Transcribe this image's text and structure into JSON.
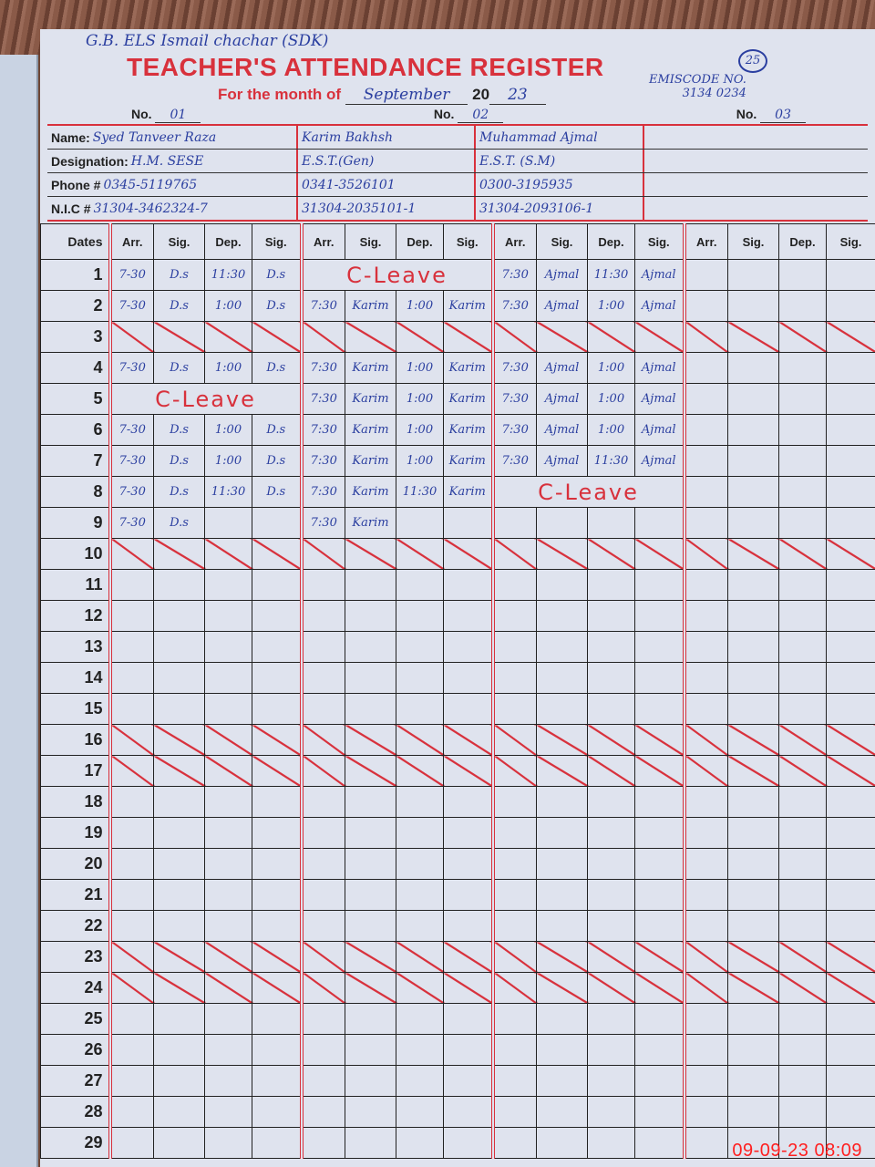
{
  "header": {
    "school": "G.B. ELS Ismail chachar (SDK)",
    "title": "TEACHER'S ATTENDANCE REGISTER",
    "page_number": "25",
    "emis_label": "EMISCODE NO.",
    "emis_code": "3134 0234",
    "month_label": "For the month of",
    "month": "September",
    "year_prefix": "20",
    "year_suffix": "23",
    "no_label": "No.",
    "numbers": [
      "01",
      "02",
      "03"
    ]
  },
  "info": {
    "labels": {
      "name": "Name:",
      "designation": "Designation:",
      "phone": "Phone #",
      "nic": "N.I.C #"
    },
    "teachers": [
      {
        "name": "Syed Tanveer Raza",
        "designation": "H.M. SESE",
        "phone": "0345-5119765",
        "nic": "31304-3462324-7"
      },
      {
        "name": "Karim Bakhsh",
        "designation": "E.S.T.(Gen)",
        "phone": "0341-3526101",
        "nic": "31304-2035101-1"
      },
      {
        "name": "Muhammad Ajmal",
        "designation": "E.S.T. (S.M)",
        "phone": "0300-3195935",
        "nic": "31304-2093106-1"
      },
      {
        "name": "",
        "designation": "",
        "phone": "",
        "nic": ""
      }
    ]
  },
  "grid": {
    "dates_header": "Dates",
    "col_headers": [
      "Arr.",
      "Sig.",
      "Dep.",
      "Sig."
    ],
    "crossed_out_dates": [
      3,
      10,
      16,
      17,
      23,
      24
    ],
    "rows": [
      {
        "date": "1",
        "t": [
          [
            "7-30",
            "D.s",
            "11:30",
            "D.s"
          ],
          {
            "leave": "C-Leave"
          },
          [
            "7:30",
            "Ajmal",
            "11:30",
            "Ajmal"
          ],
          [
            "",
            "",
            "",
            ""
          ]
        ]
      },
      {
        "date": "2",
        "t": [
          [
            "7-30",
            "D.s",
            "1:00",
            "D.s"
          ],
          [
            "7:30",
            "Karim",
            "1:00",
            "Karim"
          ],
          [
            "7:30",
            "Ajmal",
            "1:00",
            "Ajmal"
          ],
          [
            "",
            "",
            "",
            ""
          ]
        ]
      },
      {
        "date": "3",
        "t": [
          [
            "",
            "",
            "",
            ""
          ],
          [
            "",
            "",
            "",
            ""
          ],
          [
            "",
            "",
            "",
            ""
          ],
          [
            "",
            "",
            "",
            ""
          ]
        ]
      },
      {
        "date": "4",
        "t": [
          [
            "7-30",
            "D.s",
            "1:00",
            "D.s"
          ],
          [
            "7:30",
            "Karim",
            "1:00",
            "Karim"
          ],
          [
            "7:30",
            "Ajmal",
            "1:00",
            "Ajmal"
          ],
          [
            "",
            "",
            "",
            ""
          ]
        ]
      },
      {
        "date": "5",
        "t": [
          {
            "leave": "C-Leave"
          },
          [
            "7:30",
            "Karim",
            "1:00",
            "Karim"
          ],
          [
            "7:30",
            "Ajmal",
            "1:00",
            "Ajmal"
          ],
          [
            "",
            "",
            "",
            ""
          ]
        ]
      },
      {
        "date": "6",
        "t": [
          [
            "7-30",
            "D.s",
            "1:00",
            "D.s"
          ],
          [
            "7:30",
            "Karim",
            "1:00",
            "Karim"
          ],
          [
            "7:30",
            "Ajmal",
            "1:00",
            "Ajmal"
          ],
          [
            "",
            "",
            "",
            ""
          ]
        ]
      },
      {
        "date": "7",
        "t": [
          [
            "7-30",
            "D.s",
            "1:00",
            "D.s"
          ],
          [
            "7:30",
            "Karim",
            "1:00",
            "Karim"
          ],
          [
            "7:30",
            "Ajmal",
            "11:30",
            "Ajmal"
          ],
          [
            "",
            "",
            "",
            ""
          ]
        ]
      },
      {
        "date": "8",
        "t": [
          [
            "7-30",
            "D.s",
            "11:30",
            "D.s"
          ],
          [
            "7:30",
            "Karim",
            "11:30",
            "Karim"
          ],
          {
            "leave": "C-Leave"
          },
          [
            "",
            "",
            "",
            ""
          ]
        ]
      },
      {
        "date": "9",
        "t": [
          [
            "7-30",
            "D.s",
            "",
            ""
          ],
          [
            "7:30",
            "Karim",
            "",
            ""
          ],
          [
            "",
            "",
            "",
            ""
          ],
          [
            "",
            "",
            "",
            ""
          ]
        ]
      },
      {
        "date": "10"
      },
      {
        "date": "11"
      },
      {
        "date": "12"
      },
      {
        "date": "13"
      },
      {
        "date": "14"
      },
      {
        "date": "15"
      },
      {
        "date": "16"
      },
      {
        "date": "17"
      },
      {
        "date": "18"
      },
      {
        "date": "19"
      },
      {
        "date": "20"
      },
      {
        "date": "21"
      },
      {
        "date": "22"
      },
      {
        "date": "23"
      },
      {
        "date": "24"
      },
      {
        "date": "25"
      },
      {
        "date": "26"
      },
      {
        "date": "27"
      },
      {
        "date": "28"
      },
      {
        "date": "29"
      }
    ]
  },
  "timestamp": "09-09-23  08:09",
  "colors": {
    "print_red": "#d8313c",
    "ink_blue": "#2b3fa0",
    "paper": "#dfe3ee",
    "stamp": "#ff2020"
  }
}
